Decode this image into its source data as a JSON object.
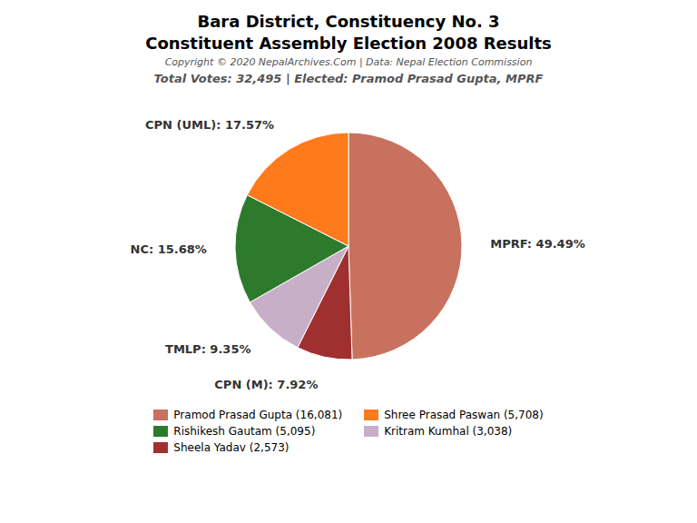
{
  "chart_data": {
    "type": "pie",
    "title": "Bara District, Constituency No. 3",
    "subtitle": "Constituent Assembly Election 2008 Results",
    "annotations": [
      "Copyright © 2020 NepalArchives.Com | Data: Nepal Election Commission",
      "Total Votes: 32,495 | Elected: Pramod Prasad Gupta, MPRF"
    ],
    "values": [
      49.49,
      7.92,
      9.35,
      15.68,
      17.57
    ],
    "value_labels": [
      "MPRF: 49.49%",
      "CPN (M): 7.92%",
      "TMLP: 9.35%",
      "NC: 15.68%",
      "CPN (UML): 17.57%"
    ],
    "colors": [
      "#c8715f",
      "#a03030",
      "#c8afc8",
      "#2d7a2d",
      "#ff7a1a"
    ],
    "data_labels": true,
    "legend": "bottom",
    "legend_entries": [
      {
        "label": "Pramod Prasad Gupta (16,081)",
        "color": "#c8715f"
      },
      {
        "label": "Rishikesh Gautam (5,095)",
        "color": "#2d7a2d"
      },
      {
        "label": "Sheela Yadav (2,573)",
        "color": "#a03030"
      },
      {
        "label": "Shree Prasad Paswan (5,708)",
        "color": "#ff7a1a"
      },
      {
        "label": "Kritram Kumhal (3,038)",
        "color": "#c8afc8"
      }
    ]
  }
}
